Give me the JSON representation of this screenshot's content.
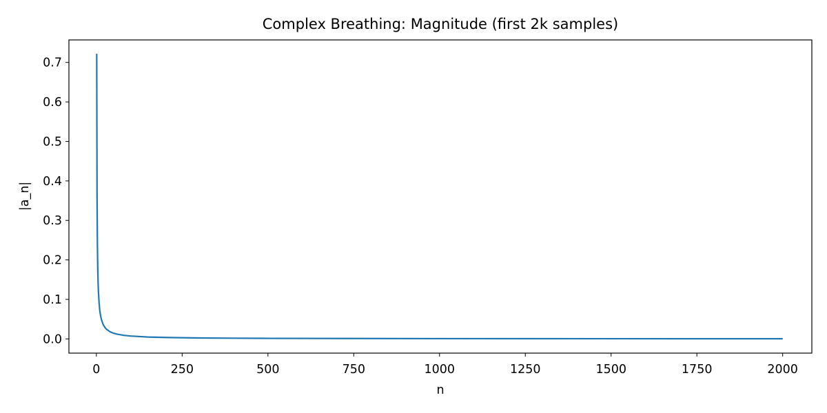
{
  "chart_data": {
    "type": "line",
    "title": "Complex Breathing: Magnitude (first 2k samples)",
    "xlabel": "n",
    "ylabel": "|a_n|",
    "xlim": [
      -80,
      2085
    ],
    "ylim": [
      -0.036,
      0.757
    ],
    "x_ticks": [
      0,
      250,
      500,
      750,
      1000,
      1250,
      1500,
      1750,
      2000
    ],
    "x_tick_labels": [
      "0",
      "250",
      "500",
      "750",
      "1000",
      "1250",
      "1500",
      "1750",
      "2000"
    ],
    "y_ticks": [
      0.0,
      0.1,
      0.2,
      0.3,
      0.4,
      0.5,
      0.6,
      0.7
    ],
    "y_tick_labels": [
      "0.0",
      "0.1",
      "0.2",
      "0.3",
      "0.4",
      "0.5",
      "0.6",
      "0.7"
    ],
    "grid": false,
    "legend": "none",
    "series": [
      {
        "color": "#1f77b4",
        "x": [
          1,
          2,
          3,
          4,
          5,
          6,
          8,
          10,
          12,
          15,
          20,
          25,
          30,
          40,
          50,
          60,
          80,
          100,
          150,
          200,
          300,
          400,
          500,
          750,
          1000,
          1250,
          1500,
          1750,
          2000
        ],
        "y": [
          0.722,
          0.36,
          0.24,
          0.18,
          0.144,
          0.12,
          0.09,
          0.072,
          0.06,
          0.048,
          0.036,
          0.029,
          0.024,
          0.018,
          0.0144,
          0.012,
          0.009,
          0.0072,
          0.0048,
          0.0036,
          0.0024,
          0.0018,
          0.0014,
          0.001,
          0.0007,
          0.0006,
          0.0005,
          0.0004,
          0.0004
        ]
      }
    ]
  }
}
